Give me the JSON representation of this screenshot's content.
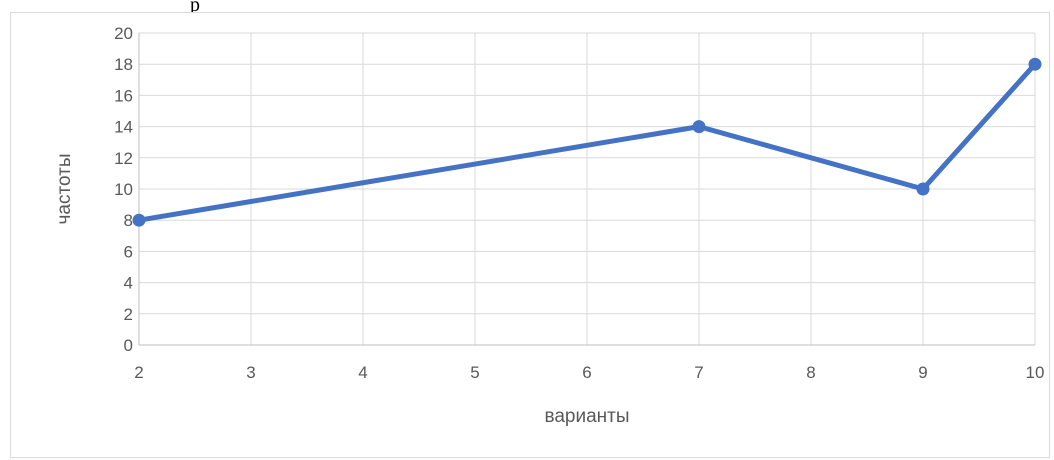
{
  "page": {
    "top_text": "р"
  },
  "chart_data": {
    "type": "line",
    "x_ticks": [
      2,
      3,
      4,
      5,
      6,
      7,
      8,
      9,
      10
    ],
    "y_ticks": [
      0,
      2,
      4,
      6,
      8,
      10,
      12,
      14,
      16,
      18,
      20
    ],
    "x": [
      2,
      7,
      9,
      10
    ],
    "series": [
      {
        "values": [
          8,
          14,
          10,
          18
        ],
        "color": "#4472c4"
      }
    ],
    "xlabel": "варианты",
    "ylabel": "частоты",
    "xlim": [
      2,
      10
    ],
    "ylim": [
      0,
      20
    ],
    "grid": true,
    "gridline_color": "#d9d9d9",
    "axis_color": "#bfbfbf"
  }
}
